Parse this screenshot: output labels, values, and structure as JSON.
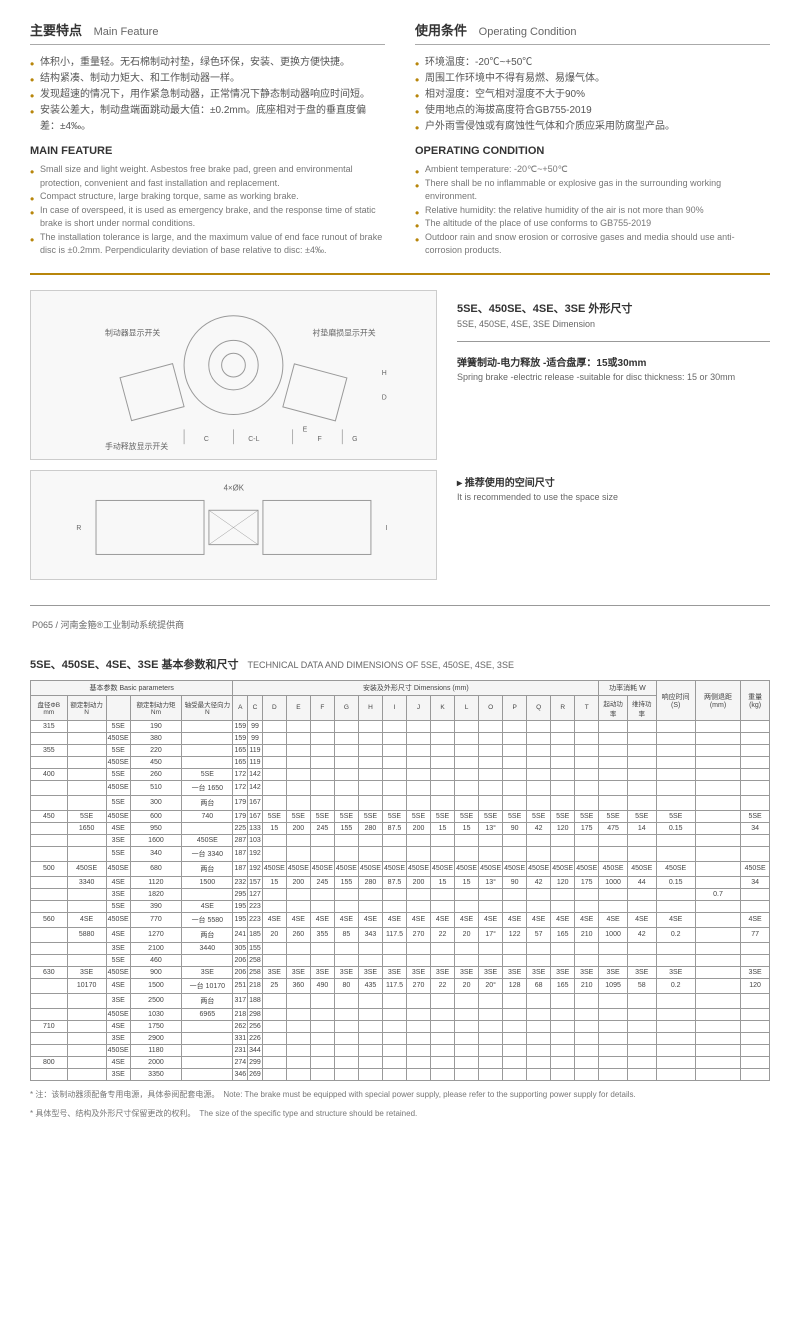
{
  "mainFeature": {
    "title_cn": "主要特点",
    "title_en": "Main Feature",
    "items_cn": [
      "体积小，重量轻。无石棉制动衬垫，绿色环保，安装、更换方便快捷。",
      "结构紧凑、制动力矩大、和工作制动器一样。",
      "发现超速的情况下，用作紧急制动器，正常情况下静态制动器响应时间短。",
      "安装公差大，制动盘端面跳动最大值：±0.2mm。底座相对于盘的垂直度偏差：±4‰。"
    ],
    "sub_title": "MAIN FEATURE",
    "items_en": [
      "Small size and light weight. Asbestos free brake pad, green and environmental protection, convenient and fast installation and replacement.",
      "Compact structure, large braking torque, same as working brake.",
      "In case of overspeed, it is used as emergency brake, and the response time of static brake is short under normal conditions.",
      "The installation tolerance is large, and the maximum value of end face runout of brake disc is ±0.2mm. Perpendicularity deviation of base relative to disc: ±4‰."
    ]
  },
  "operatingCondition": {
    "title_cn": "使用条件",
    "title_en": "Operating Condition",
    "items_cn": [
      "环境温度：-20℃~+50℃",
      "周围工作环境中不得有易燃、易爆气体。",
      "相对湿度：空气相对湿度不大于90%",
      "使用地点的海拔高度符合GB755-2019",
      "户外雨雪侵蚀或有腐蚀性气体和介质应采用防腐型产品。"
    ],
    "sub_title": "OPERATING CONDITION",
    "items_en": [
      "Ambient temperature: -20℃~+50℃",
      "There shall be no inflammable or explosive gas in the surrounding working environment.",
      "Relative humidity: the relative humidity of the air is not more than 90%",
      "The altitude of the place of use conforms to GB755-2019",
      "Outdoor rain and snow erosion or corrosive gases and media should use anti-corrosion products."
    ]
  },
  "diagram": {
    "labels": [
      "制动器显示开关",
      "衬垫磨损显示开关",
      "手动释放显示开关"
    ],
    "dims": [
      "C",
      "C-L",
      "E",
      "F",
      "G",
      "H",
      "D",
      "4×ØK",
      "R",
      "I"
    ],
    "right_title_cn": "5SE、450SE、4SE、3SE 外形尺寸",
    "right_title_en": "5SE, 450SE, 4SE, 3SE Dimension",
    "spring_cn": "弹簧制动-电力释放 -适合盘厚：15或30mm",
    "spring_en": "Spring brake -electric release -suitable for disc thickness: 15 or 30mm",
    "space_cn": "▸ 推荐使用的空间尺寸",
    "space_en": "It is recommended to use the space size"
  },
  "pageInfo": "P065 / 河南金箍®工业制动系统提供商",
  "tableTitle": {
    "cn": "5SE、450SE、4SE、3SE 基本参数和尺寸",
    "en": "TECHNICAL DATA AND DIMENSIONS OF 5SE, 450SE, 4SE, 3SE"
  },
  "tableHeaders": {
    "group1": "基本参数 Basic parameters",
    "group2": "安装及外形尺寸 Dimensions (mm)",
    "group3": "功率消耗 W",
    "cols": [
      "盘径ΦB mm",
      "额定制动力N",
      "",
      "额定制动力矩 Nm",
      "轴受最大径向力N",
      "A",
      "C",
      "D",
      "E",
      "F",
      "G",
      "H",
      "I",
      "J",
      "K",
      "L",
      "O",
      "P",
      "Q",
      "R",
      "T",
      "起动功率",
      "维持功率",
      "响应时间(S)",
      "两侧退距(mm)",
      "重量(kg)"
    ]
  },
  "tableRows": [
    [
      "315",
      "",
      "5SE",
      "190",
      "",
      "159",
      "99",
      "",
      "",
      "",
      "",
      "",
      "",
      "",
      "",
      "",
      "",
      "",
      "",
      "",
      "",
      "",
      "",
      "",
      "",
      ""
    ],
    [
      "",
      "",
      "450SE",
      "380",
      "",
      "159",
      "99",
      "",
      "",
      "",
      "",
      "",
      "",
      "",
      "",
      "",
      "",
      "",
      "",
      "",
      "",
      "",
      "",
      "",
      "",
      ""
    ],
    [
      "355",
      "",
      "5SE",
      "220",
      "",
      "165",
      "119",
      "",
      "",
      "",
      "",
      "",
      "",
      "",
      "",
      "",
      "",
      "",
      "",
      "",
      "",
      "",
      "",
      "",
      "",
      ""
    ],
    [
      "",
      "",
      "450SE",
      "450",
      "",
      "165",
      "119",
      "",
      "",
      "",
      "",
      "",
      "",
      "",
      "",
      "",
      "",
      "",
      "",
      "",
      "",
      "",
      "",
      "",
      "",
      ""
    ],
    [
      "400",
      "",
      "5SE",
      "260",
      "5SE",
      "172",
      "142",
      "",
      "",
      "",
      "",
      "",
      "",
      "",
      "",
      "",
      "",
      "",
      "",
      "",
      "",
      "",
      "",
      "",
      "",
      ""
    ],
    [
      "",
      "",
      "450SE",
      "510",
      "一台 1650",
      "172",
      "142",
      "",
      "",
      "",
      "",
      "",
      "",
      "",
      "",
      "",
      "",
      "",
      "",
      "",
      "",
      "",
      "",
      "",
      "",
      ""
    ],
    [
      "",
      "",
      "5SE",
      "300",
      "两台",
      "179",
      "167",
      "",
      "",
      "",
      "",
      "",
      "",
      "",
      "",
      "",
      "",
      "",
      "",
      "",
      "",
      "",
      "",
      "",
      "",
      ""
    ],
    [
      "450",
      "5SE",
      "450SE",
      "600",
      "740",
      "179",
      "167",
      "5SE",
      "5SE",
      "5SE",
      "5SE",
      "5SE",
      "5SE",
      "5SE",
      "5SE",
      "5SE",
      "5SE",
      "5SE",
      "5SE",
      "5SE",
      "5SE",
      "5SE",
      "5SE",
      "5SE",
      "",
      "5SE"
    ],
    [
      "",
      "1650",
      "4SE",
      "950",
      "",
      "225",
      "133",
      "15",
      "200",
      "245",
      "155",
      "280",
      "87.5",
      "200",
      "15",
      "15",
      "13°",
      "90",
      "42",
      "120",
      "175",
      "475",
      "14",
      "0.15",
      "",
      "34"
    ],
    [
      "",
      "",
      "3SE",
      "1600",
      "450SE",
      "287",
      "103",
      "",
      "",
      "",
      "",
      "",
      "",
      "",
      "",
      "",
      "",
      "",
      "",
      "",
      "",
      "",
      "",
      "",
      "",
      ""
    ],
    [
      "",
      "",
      "5SE",
      "340",
      "一台 3340",
      "187",
      "192",
      "",
      "",
      "",
      "",
      "",
      "",
      "",
      "",
      "",
      "",
      "",
      "",
      "",
      "",
      "",
      "",
      "",
      "",
      ""
    ],
    [
      "500",
      "450SE",
      "450SE",
      "680",
      "两台",
      "187",
      "192",
      "450SE",
      "450SE",
      "450SE",
      "450SE",
      "450SE",
      "450SE",
      "450SE",
      "450SE",
      "450SE",
      "450SE",
      "450SE",
      "450SE",
      "450SE",
      "450SE",
      "450SE",
      "450SE",
      "450SE",
      "",
      "450SE"
    ],
    [
      "",
      "3340",
      "4SE",
      "1120",
      "1500",
      "232",
      "157",
      "15",
      "200",
      "245",
      "155",
      "280",
      "87.5",
      "200",
      "15",
      "15",
      "13°",
      "90",
      "42",
      "120",
      "175",
      "1000",
      "44",
      "0.15",
      "",
      "34"
    ],
    [
      "",
      "",
      "3SE",
      "1820",
      "",
      "295",
      "127",
      "",
      "",
      "",
      "",
      "",
      "",
      "",
      "",
      "",
      "",
      "",
      "",
      "",
      "",
      "",
      "",
      "",
      "0.7",
      ""
    ],
    [
      "",
      "",
      "5SE",
      "390",
      "4SE",
      "195",
      "223",
      "",
      "",
      "",
      "",
      "",
      "",
      "",
      "",
      "",
      "",
      "",
      "",
      "",
      "",
      "",
      "",
      "",
      "",
      ""
    ],
    [
      "560",
      "4SE",
      "450SE",
      "770",
      "一台 5580",
      "195",
      "223",
      "4SE",
      "4SE",
      "4SE",
      "4SE",
      "4SE",
      "4SE",
      "4SE",
      "4SE",
      "4SE",
      "4SE",
      "4SE",
      "4SE",
      "4SE",
      "4SE",
      "4SE",
      "4SE",
      "4SE",
      "",
      "4SE"
    ],
    [
      "",
      "5880",
      "4SE",
      "1270",
      "两台",
      "241",
      "185",
      "20",
      "260",
      "355",
      "85",
      "343",
      "117.5",
      "270",
      "22",
      "20",
      "17°",
      "122",
      "57",
      "165",
      "210",
      "1000",
      "42",
      "0.2",
      "",
      "77"
    ],
    [
      "",
      "",
      "3SE",
      "2100",
      "3440",
      "305",
      "155",
      "",
      "",
      "",
      "",
      "",
      "",
      "",
      "",
      "",
      "",
      "",
      "",
      "",
      "",
      "",
      "",
      "",
      "",
      ""
    ],
    [
      "",
      "",
      "5SE",
      "460",
      "",
      "206",
      "258",
      "",
      "",
      "",
      "",
      "",
      "",
      "",
      "",
      "",
      "",
      "",
      "",
      "",
      "",
      "",
      "",
      "",
      "",
      ""
    ],
    [
      "630",
      "3SE",
      "450SE",
      "900",
      "3SE",
      "206",
      "258",
      "3SE",
      "3SE",
      "3SE",
      "3SE",
      "3SE",
      "3SE",
      "3SE",
      "3SE",
      "3SE",
      "3SE",
      "3SE",
      "3SE",
      "3SE",
      "3SE",
      "3SE",
      "3SE",
      "3SE",
      "",
      "3SE"
    ],
    [
      "",
      "10170",
      "4SE",
      "1500",
      "一台 10170",
      "251",
      "218",
      "25",
      "360",
      "490",
      "80",
      "435",
      "117.5",
      "270",
      "22",
      "20",
      "20°",
      "128",
      "68",
      "165",
      "210",
      "1095",
      "58",
      "0.2",
      "",
      "120"
    ],
    [
      "",
      "",
      "3SE",
      "2500",
      "两台",
      "317",
      "188",
      "",
      "",
      "",
      "",
      "",
      "",
      "",
      "",
      "",
      "",
      "",
      "",
      "",
      "",
      "",
      "",
      "",
      "",
      ""
    ],
    [
      "",
      "",
      "450SE",
      "1030",
      "6965",
      "218",
      "298",
      "",
      "",
      "",
      "",
      "",
      "",
      "",
      "",
      "",
      "",
      "",
      "",
      "",
      "",
      "",
      "",
      "",
      "",
      ""
    ],
    [
      "710",
      "",
      "4SE",
      "1750",
      "",
      "262",
      "256",
      "",
      "",
      "",
      "",
      "",
      "",
      "",
      "",
      "",
      "",
      "",
      "",
      "",
      "",
      "",
      "",
      "",
      "",
      ""
    ],
    [
      "",
      "",
      "3SE",
      "2900",
      "",
      "331",
      "226",
      "",
      "",
      "",
      "",
      "",
      "",
      "",
      "",
      "",
      "",
      "",
      "",
      "",
      "",
      "",
      "",
      "",
      "",
      ""
    ],
    [
      "",
      "",
      "450SE",
      "1180",
      "",
      "231",
      "344",
      "",
      "",
      "",
      "",
      "",
      "",
      "",
      "",
      "",
      "",
      "",
      "",
      "",
      "",
      "",
      "",
      "",
      "",
      ""
    ],
    [
      "800",
      "",
      "4SE",
      "2000",
      "",
      "274",
      "299",
      "",
      "",
      "",
      "",
      "",
      "",
      "",
      "",
      "",
      "",
      "",
      "",
      "",
      "",
      "",
      "",
      "",
      "",
      ""
    ],
    [
      "",
      "",
      "3SE",
      "3350",
      "",
      "346",
      "269",
      "",
      "",
      "",
      "",
      "",
      "",
      "",
      "",
      "",
      "",
      "",
      "",
      "",
      "",
      "",
      "",
      "",
      "",
      ""
    ]
  ],
  "footnotes": [
    "* 注：该制动器须配备专用电源，具体参阅配套电源。　Note: The brake must be equipped with special power supply, please refer to the supporting power supply for details.",
    "* 具体型号、结构及外形尺寸保留更改的权利。　The size of the specific type and structure should be retained."
  ]
}
